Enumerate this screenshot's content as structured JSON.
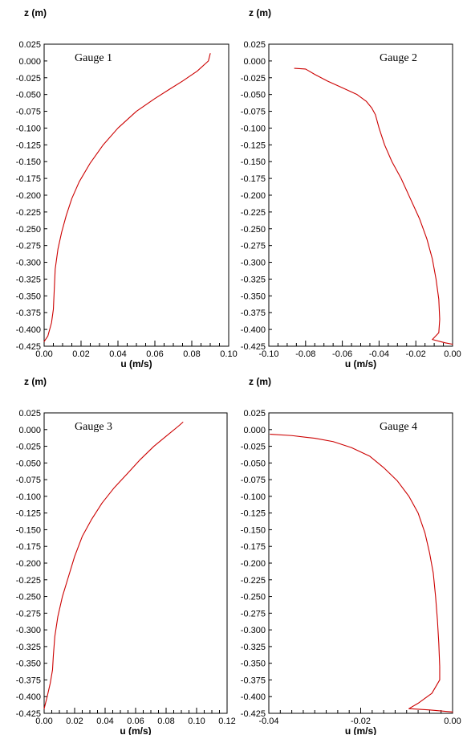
{
  "figure": {
    "colors": {
      "line": "#cc0000",
      "axis": "#000000",
      "background": "#ffffff"
    }
  },
  "chart_data": [
    {
      "type": "line",
      "title": "",
      "annotation": "Gauge 1",
      "xlabel": "u (m/s)",
      "ylabel": "z (m)",
      "xlim": [
        0,
        0.1
      ],
      "ylim": [
        -0.425,
        0.025
      ],
      "grid": false,
      "x_ticks": [
        0,
        0.02,
        0.04,
        0.06,
        0.08,
        0.1
      ],
      "x_tick_labels": [
        "0.00",
        "0.02",
        "0.04",
        "0.06",
        "0.08",
        "0.10"
      ],
      "x_minor_step": 0.005,
      "y_ticks": [
        0.025,
        0,
        -0.025,
        -0.05,
        -0.075,
        -0.1,
        -0.125,
        -0.15,
        -0.175,
        -0.2,
        -0.225,
        -0.25,
        -0.275,
        -0.3,
        -0.325,
        -0.35,
        -0.375,
        -0.4,
        -0.425
      ],
      "y_tick_labels": [
        "0.025",
        "0.000",
        "-0.025",
        "-0.050",
        "-0.075",
        "-0.100",
        "-0.125",
        "-0.150",
        "-0.175",
        "-0.200",
        "-0.225",
        "-0.250",
        "-0.275",
        "-0.300",
        "-0.325",
        "-0.350",
        "-0.375",
        "-0.400",
        "-0.425"
      ],
      "series": [
        {
          "color": "#cc0000",
          "points": [
            [
              0.09,
              0.011
            ],
            [
              0.089,
              0.0
            ],
            [
              0.083,
              -0.015
            ],
            [
              0.075,
              -0.03
            ],
            [
              0.068,
              -0.042
            ],
            [
              0.06,
              -0.056
            ],
            [
              0.05,
              -0.075
            ],
            [
              0.04,
              -0.1
            ],
            [
              0.032,
              -0.125
            ],
            [
              0.025,
              -0.152
            ],
            [
              0.019,
              -0.18
            ],
            [
              0.015,
              -0.205
            ],
            [
              0.012,
              -0.23
            ],
            [
              0.0095,
              -0.255
            ],
            [
              0.0075,
              -0.28
            ],
            [
              0.006,
              -0.31
            ],
            [
              0.0055,
              -0.34
            ],
            [
              0.005,
              -0.37
            ],
            [
              0.004,
              -0.39
            ],
            [
              0.002,
              -0.41
            ],
            [
              0.0,
              -0.418
            ]
          ]
        }
      ]
    },
    {
      "type": "line",
      "title": "",
      "annotation": "Gauge 2",
      "xlabel": "u (m/s)",
      "ylabel": "z (m)",
      "xlim": [
        -0.1,
        0.0
      ],
      "ylim": [
        -0.425,
        0.025
      ],
      "grid": false,
      "x_ticks": [
        -0.1,
        -0.08,
        -0.06,
        -0.04,
        -0.02,
        0
      ],
      "x_tick_labels": [
        "-0.10",
        "-0.08",
        "-0.06",
        "-0.04",
        "-0.02",
        "0.00"
      ],
      "x_minor_step": 0.005,
      "y_ticks": [
        0.025,
        0,
        -0.025,
        -0.05,
        -0.075,
        -0.1,
        -0.125,
        -0.15,
        -0.175,
        -0.2,
        -0.225,
        -0.25,
        -0.275,
        -0.3,
        -0.325,
        -0.35,
        -0.375,
        -0.4,
        -0.425
      ],
      "y_tick_labels": [
        "0.025",
        "0.000",
        "-0.025",
        "-0.050",
        "-0.075",
        "-0.100",
        "-0.125",
        "-0.150",
        "-0.175",
        "-0.200",
        "-0.225",
        "-0.250",
        "-0.275",
        "-0.300",
        "-0.325",
        "-0.350",
        "-0.375",
        "-0.400",
        "-0.425"
      ],
      "series": [
        {
          "color": "#cc0000",
          "points": [
            [
              -0.086,
              -0.011
            ],
            [
              -0.08,
              -0.012
            ],
            [
              -0.075,
              -0.02
            ],
            [
              -0.068,
              -0.03
            ],
            [
              -0.06,
              -0.04
            ],
            [
              -0.052,
              -0.05
            ],
            [
              -0.047,
              -0.06
            ],
            [
              -0.044,
              -0.07
            ],
            [
              -0.042,
              -0.08
            ],
            [
              -0.04,
              -0.1
            ],
            [
              -0.037,
              -0.125
            ],
            [
              -0.033,
              -0.15
            ],
            [
              -0.028,
              -0.175
            ],
            [
              -0.023,
              -0.205
            ],
            [
              -0.018,
              -0.235
            ],
            [
              -0.014,
              -0.265
            ],
            [
              -0.011,
              -0.295
            ],
            [
              -0.009,
              -0.325
            ],
            [
              -0.0075,
              -0.355
            ],
            [
              -0.007,
              -0.385
            ],
            [
              -0.0075,
              -0.405
            ],
            [
              -0.011,
              -0.415
            ],
            [
              -0.004,
              -0.42
            ],
            [
              0.0,
              -0.422
            ]
          ]
        }
      ]
    },
    {
      "type": "line",
      "title": "",
      "annotation": "Gauge 3",
      "xlabel": "u (m/s)",
      "ylabel": "z (m)",
      "xlim": [
        0,
        0.12
      ],
      "ylim": [
        -0.425,
        0.025
      ],
      "grid": false,
      "x_ticks": [
        0,
        0.02,
        0.04,
        0.06,
        0.08,
        0.1,
        0.12
      ],
      "x_tick_labels": [
        "0.00",
        "0.02",
        "0.04",
        "0.06",
        "0.08",
        "0.10",
        "0.12"
      ],
      "x_minor_step": 0.005,
      "y_ticks": [
        0.025,
        0,
        -0.025,
        -0.05,
        -0.075,
        -0.1,
        -0.125,
        -0.15,
        -0.175,
        -0.2,
        -0.225,
        -0.25,
        -0.275,
        -0.3,
        -0.325,
        -0.35,
        -0.375,
        -0.4,
        -0.425
      ],
      "y_tick_labels": [
        "0.025",
        "0.000",
        "-0.025",
        "-0.050",
        "-0.075",
        "-0.100",
        "-0.125",
        "-0.150",
        "-0.175",
        "-0.200",
        "-0.225",
        "-0.250",
        "-0.275",
        "-0.300",
        "-0.325",
        "-0.350",
        "-0.375",
        "-0.400",
        "-0.425"
      ],
      "series": [
        {
          "color": "#cc0000",
          "points": [
            [
              0.091,
              0.011
            ],
            [
              0.088,
              0.005
            ],
            [
              0.08,
              -0.01
            ],
            [
              0.072,
              -0.025
            ],
            [
              0.063,
              -0.045
            ],
            [
              0.055,
              -0.065
            ],
            [
              0.046,
              -0.087
            ],
            [
              0.038,
              -0.11
            ],
            [
              0.031,
              -0.135
            ],
            [
              0.025,
              -0.16
            ],
            [
              0.02,
              -0.19
            ],
            [
              0.016,
              -0.22
            ],
            [
              0.012,
              -0.25
            ],
            [
              0.009,
              -0.28
            ],
            [
              0.007,
              -0.31
            ],
            [
              0.006,
              -0.34
            ],
            [
              0.0055,
              -0.36
            ],
            [
              0.004,
              -0.38
            ],
            [
              0.002,
              -0.4
            ],
            [
              0.0,
              -0.418
            ]
          ]
        }
      ]
    },
    {
      "type": "line",
      "title": "",
      "annotation": "Gauge 4",
      "xlabel": "u (m/s)",
      "ylabel": "z (m)",
      "xlim": [
        -0.04,
        0.0
      ],
      "ylim": [
        -0.425,
        0.025
      ],
      "grid": false,
      "x_ticks": [
        -0.04,
        -0.02,
        0
      ],
      "x_tick_labels": [
        "-0.04",
        "-0.02",
        "0.00"
      ],
      "x_minor_step": 0.0025,
      "y_ticks": [
        0.025,
        0,
        -0.025,
        -0.05,
        -0.075,
        -0.1,
        -0.125,
        -0.15,
        -0.175,
        -0.2,
        -0.225,
        -0.25,
        -0.275,
        -0.3,
        -0.325,
        -0.35,
        -0.375,
        -0.4,
        -0.425
      ],
      "y_tick_labels": [
        "0.025",
        "0.000",
        "-0.025",
        "-0.050",
        "-0.075",
        "-0.100",
        "-0.125",
        "-0.150",
        "-0.175",
        "-0.200",
        "-0.225",
        "-0.250",
        "-0.275",
        "-0.300",
        "-0.325",
        "-0.350",
        "-0.375",
        "-0.400",
        "-0.425"
      ],
      "series": [
        {
          "color": "#cc0000",
          "points": [
            [
              -0.0397,
              -0.007
            ],
            [
              -0.035,
              -0.009
            ],
            [
              -0.03,
              -0.013
            ],
            [
              -0.026,
              -0.018
            ],
            [
              -0.022,
              -0.027
            ],
            [
              -0.018,
              -0.04
            ],
            [
              -0.015,
              -0.057
            ],
            [
              -0.012,
              -0.077
            ],
            [
              -0.0095,
              -0.1
            ],
            [
              -0.0075,
              -0.125
            ],
            [
              -0.006,
              -0.155
            ],
            [
              -0.005,
              -0.185
            ],
            [
              -0.0042,
              -0.215
            ],
            [
              -0.0037,
              -0.25
            ],
            [
              -0.0033,
              -0.285
            ],
            [
              -0.003,
              -0.32
            ],
            [
              -0.0028,
              -0.355
            ],
            [
              -0.0028,
              -0.375
            ],
            [
              -0.0045,
              -0.395
            ],
            [
              -0.0075,
              -0.41
            ],
            [
              -0.0095,
              -0.418
            ],
            [
              -0.005,
              -0.42
            ],
            [
              0.0,
              -0.423
            ]
          ]
        }
      ]
    }
  ]
}
